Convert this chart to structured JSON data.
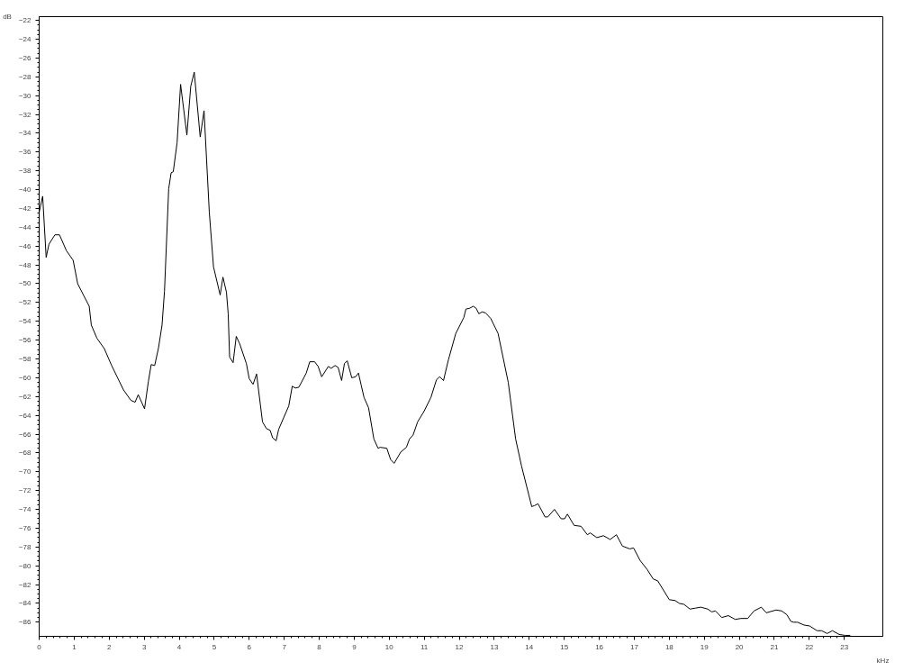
{
  "chart_data": {
    "type": "line",
    "xlabel": "kHz",
    "ylabel": "dB",
    "xlim": [
      0,
      24.1
    ],
    "ylim": [
      -87.5,
      -21.6
    ],
    "xticks": [
      0,
      1,
      2,
      3,
      4,
      5,
      6,
      7,
      8,
      9,
      10,
      11,
      12,
      13,
      14,
      15,
      16,
      17,
      18,
      19,
      20,
      21,
      22,
      23
    ],
    "yticks": [
      -86,
      -84,
      -82,
      -80,
      -78,
      -76,
      -74,
      -72,
      -70,
      -68,
      -66,
      -64,
      -62,
      -60,
      -58,
      -56,
      -54,
      -52,
      -50,
      -48,
      -46,
      -44,
      -42,
      -40,
      -38,
      -36,
      -34,
      -32,
      -30,
      -28,
      -26,
      -24,
      -22
    ],
    "grid": false,
    "marker": "none",
    "line_style": "solid",
    "series": [
      {
        "color": "#000000",
        "x": [
          0.0,
          0.1,
          0.2,
          0.28,
          0.45,
          0.58,
          0.78,
          0.97,
          1.1,
          1.43,
          1.49,
          1.65,
          1.86,
          2.07,
          2.41,
          2.62,
          2.74,
          2.83,
          3.01,
          3.12,
          3.2,
          3.3,
          3.41,
          3.51,
          3.58,
          3.7,
          3.77,
          3.83,
          3.94,
          4.04,
          4.22,
          4.33,
          4.43,
          4.6,
          4.71,
          4.86,
          4.98,
          5.17,
          5.25,
          5.35,
          5.4,
          5.44,
          5.54,
          5.63,
          5.73,
          5.92,
          6.0,
          6.11,
          6.21,
          6.38,
          6.49,
          6.6,
          6.67,
          6.77,
          6.84,
          7.13,
          7.23,
          7.32,
          7.42,
          7.63,
          7.73,
          7.87,
          7.97,
          8.07,
          8.26,
          8.34,
          8.45,
          8.54,
          8.64,
          8.72,
          8.8,
          8.93,
          9.04,
          9.12,
          9.2,
          9.28,
          9.41,
          9.56,
          9.68,
          9.74,
          9.93,
          10.04,
          10.14,
          10.33,
          10.49,
          10.58,
          10.68,
          10.81,
          10.99,
          11.19,
          11.35,
          11.44,
          11.55,
          11.69,
          11.9,
          12.13,
          12.19,
          12.3,
          12.4,
          12.48,
          12.56,
          12.65,
          12.75,
          12.9,
          13.11,
          13.4,
          13.61,
          13.78,
          13.99,
          14.07,
          14.15,
          14.25,
          14.45,
          14.53,
          14.72,
          14.91,
          15.01,
          15.09,
          15.28,
          15.48,
          15.66,
          15.74,
          15.93,
          16.12,
          16.31,
          16.49,
          16.66,
          16.87,
          16.98,
          17.16,
          17.37,
          17.54,
          17.67,
          18.0,
          18.17,
          18.29,
          18.42,
          18.59,
          18.75,
          18.9,
          19.1,
          19.21,
          19.32,
          19.5,
          19.69,
          19.88,
          20.05,
          20.24,
          20.42,
          20.63,
          20.77,
          21.05,
          21.21,
          21.36,
          21.47,
          21.55,
          21.66,
          21.85,
          22.01,
          22.22,
          22.35,
          22.51,
          22.66,
          22.85,
          23.02,
          23.17
        ],
        "values": [
          -42.4,
          -40.7,
          -47.2,
          -45.8,
          -44.8,
          -44.8,
          -46.5,
          -47.5,
          -50,
          -52.4,
          -54.4,
          -55.8,
          -56.9,
          -58.7,
          -61.3,
          -62.4,
          -62.6,
          -61.8,
          -63.3,
          -60.4,
          -58.6,
          -58.7,
          -56.8,
          -54.4,
          -50.8,
          -39.9,
          -38.2,
          -38.1,
          -35,
          -28.8,
          -34.2,
          -29,
          -27.5,
          -34.4,
          -31.6,
          -42.4,
          -48.2,
          -51.2,
          -49.3,
          -50.9,
          -53.2,
          -57.8,
          -58.4,
          -55.6,
          -56.4,
          -58.5,
          -60.1,
          -60.7,
          -59.6,
          -64.7,
          -65.4,
          -65.6,
          -66.4,
          -66.7,
          -65.5,
          -63,
          -60.9,
          -61.1,
          -61,
          -59.5,
          -58.3,
          -58.3,
          -58.8,
          -59.9,
          -58.8,
          -59,
          -58.7,
          -58.9,
          -60.3,
          -58.5,
          -58.2,
          -60,
          -59.9,
          -59.5,
          -60.8,
          -62.1,
          -63.2,
          -66.5,
          -67.5,
          -67.4,
          -67.5,
          -68.7,
          -69.1,
          -67.9,
          -67.4,
          -66.5,
          -66.1,
          -64.7,
          -63.6,
          -62.1,
          -60.2,
          -59.9,
          -60.3,
          -58.1,
          -55.3,
          -53.6,
          -52.7,
          -52.6,
          -52.4,
          -52.6,
          -53.2,
          -53,
          -53.1,
          -53.7,
          -55.3,
          -60.5,
          -66.5,
          -69.4,
          -72.5,
          -73.7,
          -73.6,
          -73.4,
          -74.8,
          -74.8,
          -74,
          -75,
          -75,
          -74.5,
          -75.7,
          -75.8,
          -76.7,
          -76.5,
          -77,
          -76.8,
          -77.2,
          -76.7,
          -77.9,
          -78.2,
          -78.1,
          -79.4,
          -80.4,
          -81.4,
          -81.6,
          -83.6,
          -83.7,
          -84,
          -84.1,
          -84.6,
          -84.5,
          -84.4,
          -84.6,
          -84.9,
          -84.8,
          -85.5,
          -85.3,
          -85.7,
          -85.6,
          -85.6,
          -84.8,
          -84.4,
          -85,
          -84.7,
          -84.8,
          -85.2,
          -85.9,
          -86,
          -86,
          -86.3,
          -86.4,
          -86.9,
          -86.9,
          -87.2,
          -86.9,
          -87.3,
          -87.4,
          -87.4
        ]
      }
    ]
  }
}
